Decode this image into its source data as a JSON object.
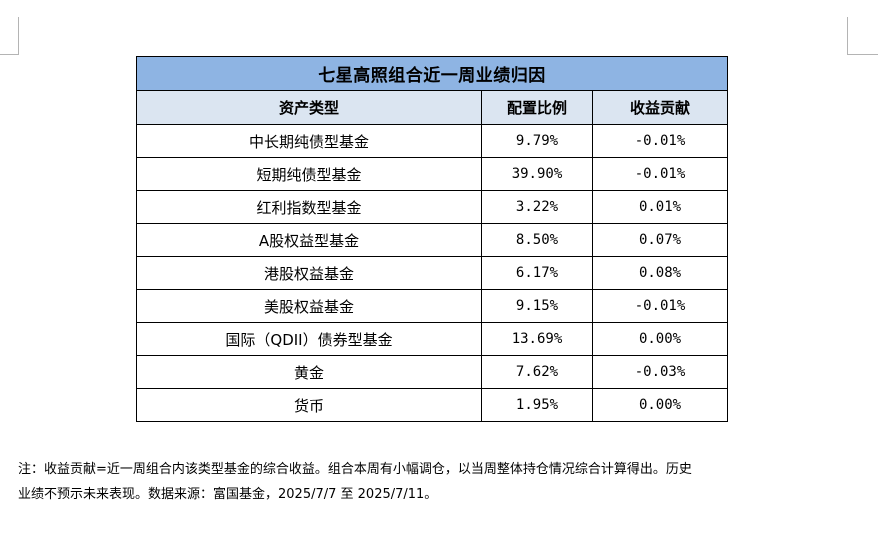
{
  "table": {
    "title": "七星高照组合近一周业绩归因",
    "headers": [
      "资产类型",
      "配置比例",
      "收益贡献"
    ],
    "rows": [
      {
        "asset": "中长期纯债型基金",
        "ratio": "9.79%",
        "contrib": "-0.01%"
      },
      {
        "asset": "短期纯债型基金",
        "ratio": "39.90%",
        "contrib": "-0.01%"
      },
      {
        "asset": "红利指数型基金",
        "ratio": "3.22%",
        "contrib": "0.01%"
      },
      {
        "asset": "A股权益型基金",
        "ratio": "8.50%",
        "contrib": "0.07%"
      },
      {
        "asset": "港股权益基金",
        "ratio": "6.17%",
        "contrib": "0.08%"
      },
      {
        "asset": "美股权益基金",
        "ratio": "9.15%",
        "contrib": "-0.01%"
      },
      {
        "asset": "国际（QDII）债券型基金",
        "ratio": "13.69%",
        "contrib": "0.00%"
      },
      {
        "asset": "黄金",
        "ratio": "7.62%",
        "contrib": "-0.03%"
      },
      {
        "asset": "货币",
        "ratio": "1.95%",
        "contrib": "0.00%"
      }
    ]
  },
  "note": {
    "line1": "注：收益贡献=近一周组合内该类型基金的综合收益。组合本周有小幅调仓，以当周整体持仓情况综合计算得出。历史",
    "line2": "业绩不预示未来表现。数据来源：富国基金，2025/7/7 至 2025/7/11。"
  }
}
